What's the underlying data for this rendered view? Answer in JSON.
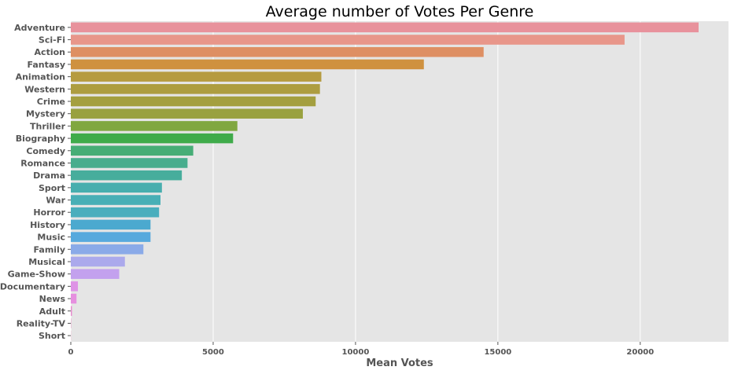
{
  "chart_data": {
    "type": "bar",
    "orientation": "horizontal",
    "title": "Average number of Votes Per Genre",
    "xlabel": "Mean Votes",
    "ylabel": "",
    "xlim": [
      0,
      23100
    ],
    "xticks": [
      0,
      5000,
      10000,
      15000,
      20000
    ],
    "grid": true,
    "background": "#e5e5e5",
    "categories": [
      "Adventure",
      "Sci-Fi",
      "Action",
      "Fantasy",
      "Animation",
      "Western",
      "Crime",
      "Mystery",
      "Thriller",
      "Biography",
      "Comedy",
      "Romance",
      "Drama",
      "Sport",
      "War",
      "Horror",
      "History",
      "Music",
      "Family",
      "Musical",
      "Game-Show",
      "Documentary",
      "News",
      "Adult",
      "Reality-TV",
      "Short"
    ],
    "values": [
      22050,
      19450,
      14500,
      12400,
      8800,
      8750,
      8600,
      8150,
      5850,
      5700,
      4300,
      4100,
      3900,
      3200,
      3150,
      3100,
      2800,
      2800,
      2550,
      1900,
      1700,
      250,
      200,
      40,
      10,
      5
    ],
    "colors": [
      "#e8929c",
      "#e8968a",
      "#de8f63",
      "#cf913f",
      "#b69b40",
      "#ad9d40",
      "#a49f3f",
      "#99a13f",
      "#80a740",
      "#3fab4a",
      "#46ad76",
      "#48ad8d",
      "#47ad9c",
      "#47aeae",
      "#48afb6",
      "#4aaebd",
      "#4ba9cf",
      "#57a9dd",
      "#8aaae8",
      "#aba9ec",
      "#c3a1ee",
      "#de93e6",
      "#e68fdf",
      "#e88bce",
      "#e98bc0",
      "#e98bb3"
    ]
  }
}
